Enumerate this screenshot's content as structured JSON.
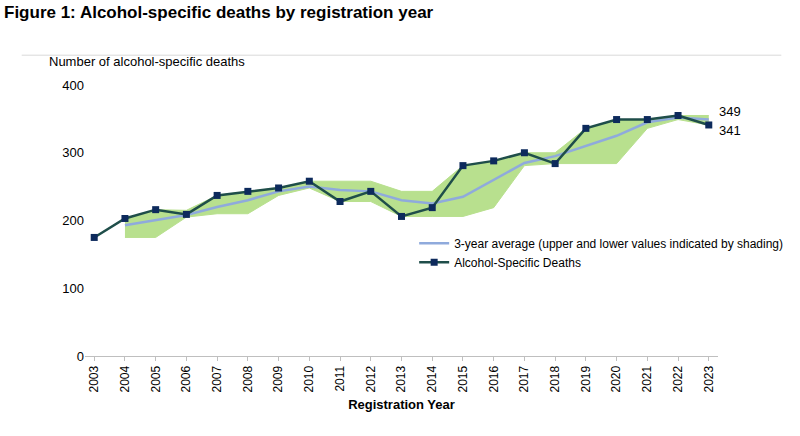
{
  "chart_data": {
    "type": "line",
    "title": "Figure 1: Alcohol-specific deaths by registration year",
    "y_label": "Number of alcohol-specific deaths",
    "x_label": "Registration Year",
    "categories": [
      "2003",
      "2004",
      "2005",
      "2006",
      "2007",
      "2008",
      "2009",
      "2010",
      "2011",
      "2012",
      "2013",
      "2014",
      "2015",
      "2016",
      "2017",
      "2018",
      "2019",
      "2020",
      "2021",
      "2022",
      "2023"
    ],
    "series": [
      {
        "name": "3-year average (upper and lower values indicated by shading)",
        "color": "#8faadc",
        "band_color": "#b8e08e",
        "values": [
          null,
          193,
          200,
          208,
          220,
          230,
          243,
          250,
          245,
          243,
          230,
          225,
          235,
          260,
          285,
          295,
          310,
          325,
          345,
          352,
          349
        ],
        "lower": [
          null,
          175,
          175,
          205,
          210,
          210,
          237,
          248,
          228,
          228,
          206,
          206,
          206,
          219,
          281,
          284,
          284,
          284,
          336,
          349,
          341
        ],
        "upper": [
          null,
          203,
          216,
          215,
          237,
          243,
          248,
          258,
          258,
          258,
          243,
          243,
          281,
          288,
          300,
          300,
          336,
          349,
          349,
          355,
          355
        ]
      },
      {
        "name": "Alcohol-Specific Deaths",
        "color": "#1f4e4a",
        "marker": "square",
        "marker_color": "#0d2a5c",
        "values": [
          175,
          203,
          216,
          209,
          237,
          243,
          248,
          258,
          228,
          243,
          206,
          219,
          281,
          288,
          300,
          284,
          336,
          349,
          349,
          355,
          341
        ]
      }
    ],
    "annotations": [
      {
        "text": "349",
        "series": "3-year average (upper and lower values indicated by shading)",
        "category": "2023"
      },
      {
        "text": "341",
        "series": "Alcohol-Specific Deaths",
        "category": "2023"
      }
    ],
    "ylim": [
      0,
      400
    ],
    "yticks": [
      0,
      100,
      200,
      300,
      400
    ],
    "grid": false,
    "legend": "right"
  }
}
